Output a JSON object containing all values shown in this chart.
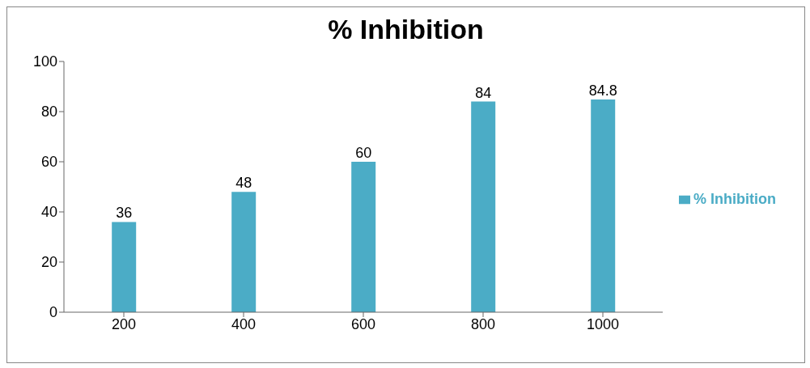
{
  "chart_data": {
    "type": "bar",
    "title": "% Inhibition",
    "categories": [
      "200",
      "400",
      "600",
      "800",
      "1000"
    ],
    "series": [
      {
        "name": "% Inhibition",
        "color": "#4bacc6",
        "values": [
          36,
          48,
          60,
          84,
          84.8
        ]
      }
    ],
    "ylim": [
      0,
      100
    ],
    "yticks": [
      0,
      20,
      40,
      60,
      80,
      100
    ],
    "data_labels": true,
    "legend": "right",
    "grid": false
  }
}
